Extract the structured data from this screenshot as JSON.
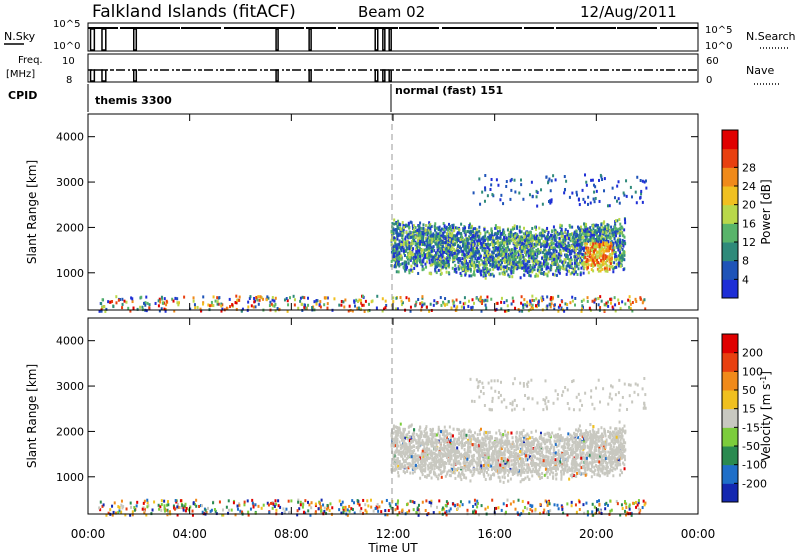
{
  "header": {
    "title": "Falkland Islands (fitACF)",
    "beam": "Beam 02",
    "date": "12/Aug/2011"
  },
  "status_panel": {
    "left_top_label": "N.Sky",
    "left_top_ticks": [
      "10^5",
      "10^0"
    ],
    "right_top_label": "N.Search",
    "right_top_ticks": [
      "10^5",
      "10^0"
    ],
    "left_mid_label_1": "Freq.",
    "left_mid_label_2": "[MHz]",
    "left_mid_ticks": [
      "10",
      "8"
    ],
    "right_mid_label": "Nave",
    "right_mid_ticks": [
      "60",
      "0"
    ],
    "cpid_label": "CPID",
    "mode_1": "themis 3300",
    "mode_2": "normal (fast) 151"
  },
  "chart_data": [
    {
      "type": "heatmap",
      "title": "",
      "xlabel": "Time UT",
      "ylabel": "Slant Range [km]",
      "x_ticks": [
        "00:00",
        "04:00",
        "08:00",
        "12:00",
        "16:00",
        "20:00",
        "00:00"
      ],
      "y_ticks": [
        "1000",
        "2000",
        "3000",
        "4000"
      ],
      "xlim_hours": [
        0,
        24
      ],
      "ylim_km": [
        180,
        4500
      ],
      "colorbar": {
        "label": "Power [dB]",
        "ticks": [
          "4",
          "8",
          "12",
          "16",
          "20",
          "24",
          "28"
        ],
        "colors": [
          "#1f2fd6",
          "#1f54b8",
          "#2f8a7a",
          "#58b46a",
          "#b9d84a",
          "#f0c020",
          "#f08a1a",
          "#e84010",
          "#e00000"
        ]
      },
      "regions": [
        {
          "name": "daytime echoes",
          "x": [
            11.9,
            21.0
          ],
          "y": [
            1200,
            2400
          ],
          "dominant": "blue-green, peak near 20:00"
        },
        {
          "name": "near-range scatter",
          "x": [
            0.5,
            22.0
          ],
          "y": [
            180,
            500
          ],
          "dominant": "sparse"
        },
        {
          "name": "mode change",
          "x": [
            11.9,
            11.9
          ],
          "y": [
            180,
            4500
          ],
          "dominant": "dashed line"
        }
      ]
    },
    {
      "type": "heatmap",
      "title": "",
      "xlabel": "Time UT",
      "ylabel": "Slant Range [km]",
      "x_ticks": [
        "00:00",
        "04:00",
        "08:00",
        "12:00",
        "16:00",
        "20:00",
        "00:00"
      ],
      "y_ticks": [
        "1000",
        "2000",
        "3000",
        "4000"
      ],
      "xlim_hours": [
        0,
        24
      ],
      "ylim_km": [
        180,
        4500
      ],
      "colorbar": {
        "label_prefix": "Velocity [m s",
        "label_exp": "-1",
        "label_suffix": "]",
        "ticks": [
          "200",
          "100",
          "50",
          "15",
          "-15",
          "-50",
          "-100",
          "-200"
        ],
        "colors": [
          "#1428b0",
          "#1f6fc8",
          "#2a8a50",
          "#7ccc3c",
          "#c8c8c0",
          "#f0c020",
          "#f08a1a",
          "#e84010",
          "#e00000"
        ]
      },
      "regions": [
        {
          "name": "ground scatter",
          "x": [
            11.9,
            21.0
          ],
          "y": [
            1200,
            2500
          ],
          "dominant": "grey (|v| < 15)"
        },
        {
          "name": "near-range scatter",
          "x": [
            0.5,
            22.0
          ],
          "y": [
            180,
            500
          ],
          "dominant": "green/yellow"
        }
      ]
    }
  ]
}
